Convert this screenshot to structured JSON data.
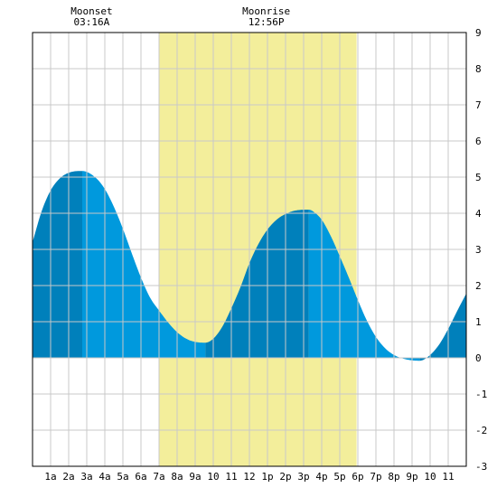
{
  "chart_data": {
    "type": "area",
    "title": "",
    "xlabel": "",
    "ylabel": "",
    "xlim": [
      0,
      24
    ],
    "ylim": [
      -3,
      9
    ],
    "grid": true,
    "x_tick_labels": [
      "1a",
      "2a",
      "3a",
      "4a",
      "5a",
      "6a",
      "7a",
      "8a",
      "9a",
      "10",
      "11",
      "12",
      "1p",
      "2p",
      "3p",
      "4p",
      "5p",
      "6p",
      "7p",
      "8p",
      "9p",
      "10",
      "11"
    ],
    "y_tick_labels": [
      "-3",
      "-2",
      "-1",
      "0",
      "1",
      "2",
      "3",
      "4",
      "5",
      "6",
      "7",
      "8",
      "9"
    ],
    "daylight": {
      "start": 7.0,
      "end": 17.93,
      "color": "#f3ee9b"
    },
    "colors": {
      "tide_light": "#0099dd",
      "tide_dark": "#0080bb",
      "grid": "#c8c8c8",
      "border": "#000000"
    },
    "extremes": [
      {
        "x": 2.75,
        "y": 5.17,
        "kind": "high"
      },
      {
        "x": 9.57,
        "y": 0.42,
        "kind": "low"
      },
      {
        "x": 15.28,
        "y": 4.1,
        "kind": "high"
      },
      {
        "x": 21.43,
        "y": -0.08,
        "kind": "low"
      }
    ],
    "series": [
      {
        "values": [
          [
            0.0,
            3.2
          ],
          [
            0.5,
            4.05
          ],
          [
            1.0,
            4.63
          ],
          [
            1.5,
            4.96
          ],
          [
            2.0,
            5.12
          ],
          [
            2.75,
            5.17
          ],
          [
            3.5,
            4.98
          ],
          [
            4.0,
            4.67
          ],
          [
            4.5,
            4.18
          ],
          [
            5.0,
            3.57
          ],
          [
            5.5,
            2.88
          ],
          [
            6.0,
            2.22
          ],
          [
            6.5,
            1.67
          ],
          [
            7.0,
            1.31
          ],
          [
            7.5,
            0.98
          ],
          [
            8.0,
            0.71
          ],
          [
            8.5,
            0.53
          ],
          [
            9.0,
            0.44
          ],
          [
            9.57,
            0.42
          ],
          [
            10.0,
            0.53
          ],
          [
            10.5,
            0.86
          ],
          [
            11.0,
            1.37
          ],
          [
            11.5,
            1.95
          ],
          [
            12.0,
            2.62
          ],
          [
            12.5,
            3.15
          ],
          [
            13.0,
            3.55
          ],
          [
            13.5,
            3.82
          ],
          [
            14.0,
            3.98
          ],
          [
            14.5,
            4.07
          ],
          [
            15.28,
            4.1
          ],
          [
            15.5,
            4.06
          ],
          [
            16.0,
            3.82
          ],
          [
            16.5,
            3.37
          ],
          [
            17.0,
            2.81
          ],
          [
            17.5,
            2.22
          ],
          [
            18.0,
            1.6
          ],
          [
            18.5,
            1.03
          ],
          [
            19.0,
            0.58
          ],
          [
            19.5,
            0.27
          ],
          [
            20.0,
            0.08
          ],
          [
            20.5,
            -0.02
          ],
          [
            21.0,
            -0.07
          ],
          [
            21.43,
            -0.08
          ],
          [
            22.0,
            0.08
          ],
          [
            22.5,
            0.37
          ],
          [
            23.0,
            0.8
          ],
          [
            23.5,
            1.3
          ],
          [
            24.0,
            1.78
          ]
        ]
      }
    ]
  },
  "moon": [
    {
      "label": "Moonset",
      "time": "03:16A",
      "x": 3.27
    },
    {
      "label": "Moonrise",
      "time": "12:56P",
      "x": 12.93
    }
  ]
}
